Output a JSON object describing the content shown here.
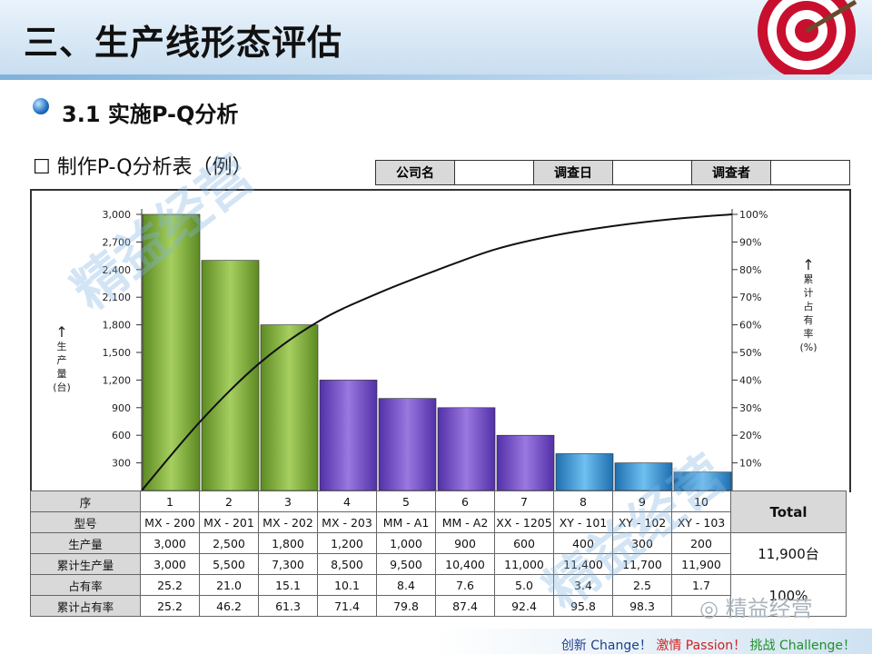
{
  "header": {
    "title": "三、生产线形态评估"
  },
  "section": {
    "title": "3.1 实施P-Q分析",
    "subtitle": "☐ 制作P-Q分析表（例）"
  },
  "info_table": {
    "cells": [
      "公司名",
      "",
      "调查日",
      "",
      "调查者",
      ""
    ]
  },
  "axes": {
    "left_label": [
      "生",
      "产",
      "量",
      "(台)"
    ],
    "right_label": [
      "累",
      "计",
      "占",
      "有",
      "率",
      "(%)"
    ]
  },
  "chart_data": {
    "type": "bar",
    "title": "P-Q分析",
    "categories": [
      "MX - 200",
      "MX - 201",
      "MX - 202",
      "MX - 203",
      "MM - A1",
      "MM - A2",
      "XX - 1205",
      "XY - 101",
      "XY - 102",
      "XY - 103"
    ],
    "values": [
      3000,
      2500,
      1800,
      1200,
      1000,
      900,
      600,
      400,
      300,
      200
    ],
    "cumulative_pct": [
      25.2,
      46.2,
      61.3,
      71.4,
      79.8,
      87.4,
      92.4,
      95.8,
      98.3,
      100
    ],
    "y_ticks": [
      "300",
      "600",
      "900",
      "1,200",
      "1,500",
      "1,800",
      "2,100",
      "2,400",
      "2,700",
      "3,000"
    ],
    "y2_ticks": [
      "10%",
      "20%",
      "30%",
      "40%",
      "50%",
      "60%",
      "70%",
      "80%",
      "90%",
      "100%"
    ],
    "ylim": [
      0,
      3000
    ],
    "y2lim": [
      0,
      100
    ],
    "bar_colors": [
      "#7fae3a",
      "#7fae3a",
      "#7fae3a",
      "#7a4fc9",
      "#7a4fc9",
      "#7a4fc9",
      "#7a4fc9",
      "#2f8fd4",
      "#2f8fd4",
      "#2f8fd4"
    ]
  },
  "table": {
    "rows": [
      {
        "label": "序",
        "cells": [
          "1",
          "2",
          "3",
          "4",
          "5",
          "6",
          "7",
          "8",
          "9",
          "10"
        ]
      },
      {
        "label": "型号",
        "cells": [
          "MX - 200",
          "MX - 201",
          "MX - 202",
          "MX - 203",
          "MM - A1",
          "MM - A2",
          "XX - 1205",
          "XY - 101",
          "XY - 102",
          "XY - 103"
        ]
      },
      {
        "label": "生产量",
        "cells": [
          "3,000",
          "2,500",
          "1,800",
          "1,200",
          "1,000",
          "900",
          "600",
          "400",
          "300",
          "200"
        ]
      },
      {
        "label": "累计生产量",
        "cells": [
          "3,000",
          "5,500",
          "7,300",
          "8,500",
          "9,500",
          "10,400",
          "11,000",
          "11,400",
          "11,700",
          "11,900"
        ]
      },
      {
        "label": "占有率",
        "cells": [
          "25.2",
          "21.0",
          "15.1",
          "10.1",
          "8.4",
          "7.6",
          "5.0",
          "3.4",
          "2.5",
          "1.7"
        ]
      },
      {
        "label": "累计占有率",
        "cells": [
          "25.2",
          "46.2",
          "61.3",
          "71.4",
          "79.8",
          "87.4",
          "92.4",
          "95.8",
          "98.3",
          ""
        ]
      }
    ],
    "total_label": "Total",
    "total_qty": "11,900台",
    "total_pct": "100%"
  },
  "watermark": {
    "text": "精益经营"
  },
  "footer": {
    "slogan_a": "创新",
    "slogan_b": "Change！",
    "slogan_c": "激情",
    "slogan_d": "Passion！",
    "slogan_e": "挑战",
    "slogan_f": "Challenge！"
  }
}
